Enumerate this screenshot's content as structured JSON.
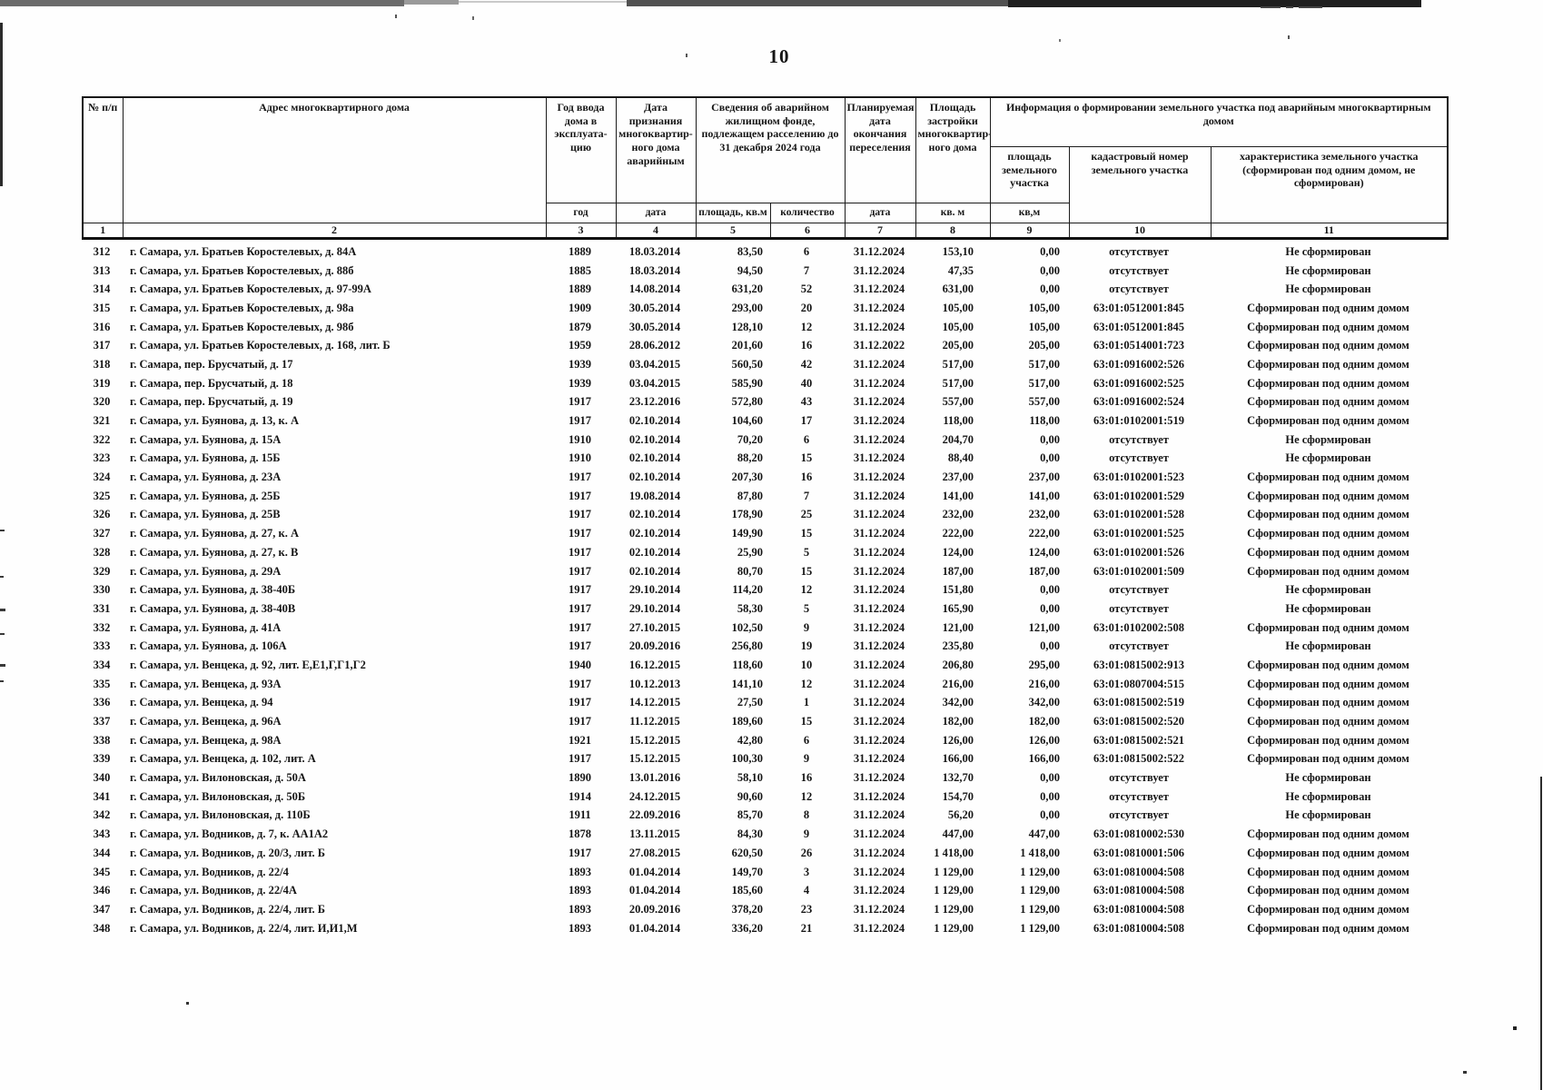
{
  "page_number": "10",
  "table": {
    "headers": {
      "num": "№ п/п",
      "address": "Адрес многоквартирного дома",
      "year": "Год ввода дома в эксплуата-цию",
      "recognition": "Дата признания многоквартир-ного дома аварийным",
      "emergency_info": "Сведения об аварийном жилищном фонде, подлежащем расселению до 31 декабря 2024 года",
      "planned_date": "Планируемая дата окончания переселения",
      "building_area": "Площадь застройки многоквартир-ного дома",
      "land_info_group": "Информация о формировании земельного участка под аварийным многоквартирным домом",
      "land_area": "площадь земельного участка",
      "cadastral": "кадастровый номер земельного участка",
      "characteristic": "характеристика земельного участка (сформирован под одним домом, не сформирован)"
    },
    "units": {
      "year": "год",
      "date": "дата",
      "area": "площадь, кв.м",
      "count": "количество",
      "date2": "дата",
      "sqm": "кв. м",
      "sqm2": "кв,м"
    },
    "col_numbers": [
      "1",
      "2",
      "3",
      "4",
      "5",
      "6",
      "7",
      "8",
      "9",
      "10",
      "11"
    ],
    "rows": [
      [
        "312",
        "г. Самара, ул. Братьев Коростелевых, д. 84А",
        "1889",
        "18.03.2014",
        "83,50",
        "6",
        "31.12.2024",
        "153,10",
        "0,00",
        "отсутствует",
        "Не сформирован"
      ],
      [
        "313",
        "г. Самара, ул. Братьев Коростелевых, д. 88б",
        "1885",
        "18.03.2014",
        "94,50",
        "7",
        "31.12.2024",
        "47,35",
        "0,00",
        "отсутствует",
        "Не сформирован"
      ],
      [
        "314",
        "г. Самара, ул. Братьев Коростелевых, д. 97-99А",
        "1889",
        "14.08.2014",
        "631,20",
        "52",
        "31.12.2024",
        "631,00",
        "0,00",
        "отсутствует",
        "Не сформирован"
      ],
      [
        "315",
        "г. Самара, ул. Братьев Коростелевых, д. 98а",
        "1909",
        "30.05.2014",
        "293,00",
        "20",
        "31.12.2024",
        "105,00",
        "105,00",
        "63:01:0512001:845",
        "Сформирован под одним домом"
      ],
      [
        "316",
        "г. Самара, ул. Братьев Коростелевых, д. 98б",
        "1879",
        "30.05.2014",
        "128,10",
        "12",
        "31.12.2024",
        "105,00",
        "105,00",
        "63:01:0512001:845",
        "Сформирован под одним домом"
      ],
      [
        "317",
        "г. Самара, ул. Братьев Коростелевых, д. 168, лит. Б",
        "1959",
        "28.06.2012",
        "201,60",
        "16",
        "31.12.2022",
        "205,00",
        "205,00",
        "63:01:0514001:723",
        "Сформирован под одним домом"
      ],
      [
        "318",
        "г. Самара, пер. Брусчатый, д. 17",
        "1939",
        "03.04.2015",
        "560,50",
        "42",
        "31.12.2024",
        "517,00",
        "517,00",
        "63:01:0916002:526",
        "Сформирован под одним домом"
      ],
      [
        "319",
        "г. Самара, пер. Брусчатый, д. 18",
        "1939",
        "03.04.2015",
        "585,90",
        "40",
        "31.12.2024",
        "517,00",
        "517,00",
        "63:01:0916002:525",
        "Сформирован под одним домом"
      ],
      [
        "320",
        "г. Самара, пер. Брусчатый, д. 19",
        "1917",
        "23.12.2016",
        "572,80",
        "43",
        "31.12.2024",
        "557,00",
        "557,00",
        "63:01:0916002:524",
        "Сформирован под одним домом"
      ],
      [
        "321",
        "г. Самара, ул. Буянова, д. 13, к. А",
        "1917",
        "02.10.2014",
        "104,60",
        "17",
        "31.12.2024",
        "118,00",
        "118,00",
        "63:01:0102001:519",
        "Сформирован под одним домом"
      ],
      [
        "322",
        "г. Самара, ул. Буянова, д. 15А",
        "1910",
        "02.10.2014",
        "70,20",
        "6",
        "31.12.2024",
        "204,70",
        "0,00",
        "отсутствует",
        "Не сформирован"
      ],
      [
        "323",
        "г. Самара, ул. Буянова, д. 15Б",
        "1910",
        "02.10.2014",
        "88,20",
        "15",
        "31.12.2024",
        "88,40",
        "0,00",
        "отсутствует",
        "Не сформирован"
      ],
      [
        "324",
        "г. Самара, ул. Буянова, д. 23А",
        "1917",
        "02.10.2014",
        "207,30",
        "16",
        "31.12.2024",
        "237,00",
        "237,00",
        "63:01:0102001:523",
        "Сформирован под одним домом"
      ],
      [
        "325",
        "г. Самара, ул. Буянова, д. 25Б",
        "1917",
        "19.08.2014",
        "87,80",
        "7",
        "31.12.2024",
        "141,00",
        "141,00",
        "63:01:0102001:529",
        "Сформирован под одним домом"
      ],
      [
        "326",
        "г. Самара, ул. Буянова, д. 25В",
        "1917",
        "02.10.2014",
        "178,90",
        "25",
        "31.12.2024",
        "232,00",
        "232,00",
        "63:01:0102001:528",
        "Сформирован под одним домом"
      ],
      [
        "327",
        "г. Самара, ул. Буянова, д. 27, к. А",
        "1917",
        "02.10.2014",
        "149,90",
        "15",
        "31.12.2024",
        "222,00",
        "222,00",
        "63:01:0102001:525",
        "Сформирован под одним домом"
      ],
      [
        "328",
        "г. Самара, ул. Буянова, д. 27, к. В",
        "1917",
        "02.10.2014",
        "25,90",
        "5",
        "31.12.2024",
        "124,00",
        "124,00",
        "63:01:0102001:526",
        "Сформирован под одним домом"
      ],
      [
        "329",
        "г. Самара, ул. Буянова, д. 29А",
        "1917",
        "02.10.2014",
        "80,70",
        "15",
        "31.12.2024",
        "187,00",
        "187,00",
        "63:01:0102001:509",
        "Сформирован под одним домом"
      ],
      [
        "330",
        "г. Самара, ул. Буянова, д. 38-40Б",
        "1917",
        "29.10.2014",
        "114,20",
        "12",
        "31.12.2024",
        "151,80",
        "0,00",
        "отсутствует",
        "Не сформирован"
      ],
      [
        "331",
        "г. Самара, ул. Буянова, д. 38-40В",
        "1917",
        "29.10.2014",
        "58,30",
        "5",
        "31.12.2024",
        "165,90",
        "0,00",
        "отсутствует",
        "Не сформирован"
      ],
      [
        "332",
        "г. Самара, ул. Буянова, д. 41А",
        "1917",
        "27.10.2015",
        "102,50",
        "9",
        "31.12.2024",
        "121,00",
        "121,00",
        "63:01:0102002:508",
        "Сформирован под одним домом"
      ],
      [
        "333",
        "г. Самара, ул. Буянова, д. 106А",
        "1917",
        "20.09.2016",
        "256,80",
        "19",
        "31.12.2024",
        "235,80",
        "0,00",
        "отсутствует",
        "Не сформирован"
      ],
      [
        "334",
        "г. Самара, ул. Венцека, д. 92, лит. Е,Е1,Г,Г1,Г2",
        "1940",
        "16.12.2015",
        "118,60",
        "10",
        "31.12.2024",
        "206,80",
        "295,00",
        "63:01:0815002:913",
        "Сформирован под одним домом"
      ],
      [
        "335",
        "г. Самара, ул. Венцека, д. 93А",
        "1917",
        "10.12.2013",
        "141,10",
        "12",
        "31.12.2024",
        "216,00",
        "216,00",
        "63:01:0807004:515",
        "Сформирован под одним домом"
      ],
      [
        "336",
        "г. Самара, ул. Венцека, д. 94",
        "1917",
        "14.12.2015",
        "27,50",
        "1",
        "31.12.2024",
        "342,00",
        "342,00",
        "63:01:0815002:519",
        "Сформирован под одним домом"
      ],
      [
        "337",
        "г. Самара, ул. Венцека, д. 96А",
        "1917",
        "11.12.2015",
        "189,60",
        "15",
        "31.12.2024",
        "182,00",
        "182,00",
        "63:01:0815002:520",
        "Сформирован под одним домом"
      ],
      [
        "338",
        "г. Самара, ул. Венцека, д. 98А",
        "1921",
        "15.12.2015",
        "42,80",
        "6",
        "31.12.2024",
        "126,00",
        "126,00",
        "63:01:0815002:521",
        "Сформирован под одним домом"
      ],
      [
        "339",
        "г. Самара, ул. Венцека, д. 102, лит. А",
        "1917",
        "15.12.2015",
        "100,30",
        "9",
        "31.12.2024",
        "166,00",
        "166,00",
        "63:01:0815002:522",
        "Сформирован под одним домом"
      ],
      [
        "340",
        "г. Самара, ул. Вилоновская, д. 50А",
        "1890",
        "13.01.2016",
        "58,10",
        "16",
        "31.12.2024",
        "132,70",
        "0,00",
        "отсутствует",
        "Не сформирован"
      ],
      [
        "341",
        "г. Самара, ул. Вилоновская, д. 50Б",
        "1914",
        "24.12.2015",
        "90,60",
        "12",
        "31.12.2024",
        "154,70",
        "0,00",
        "отсутствует",
        "Не сформирован"
      ],
      [
        "342",
        "г. Самара, ул. Вилоновская, д. 110Б",
        "1911",
        "22.09.2016",
        "85,70",
        "8",
        "31.12.2024",
        "56,20",
        "0,00",
        "отсутствует",
        "Не сформирован"
      ],
      [
        "343",
        "г. Самара, ул. Водников, д. 7, к. АА1А2",
        "1878",
        "13.11.2015",
        "84,30",
        "9",
        "31.12.2024",
        "447,00",
        "447,00",
        "63:01:0810002:530",
        "Сформирован под одним домом"
      ],
      [
        "344",
        "г. Самара, ул. Водников, д. 20/3, лит. Б",
        "1917",
        "27.08.2015",
        "620,50",
        "26",
        "31.12.2024",
        "1 418,00",
        "1 418,00",
        "63:01:0810001:506",
        "Сформирован под одним домом"
      ],
      [
        "345",
        "г. Самара, ул. Водников, д. 22/4",
        "1893",
        "01.04.2014",
        "149,70",
        "3",
        "31.12.2024",
        "1 129,00",
        "1 129,00",
        "63:01:0810004:508",
        "Сформирован под одним домом"
      ],
      [
        "346",
        "г. Самара, ул. Водников, д. 22/4А",
        "1893",
        "01.04.2014",
        "185,60",
        "4",
        "31.12.2024",
        "1 129,00",
        "1 129,00",
        "63:01:0810004:508",
        "Сформирован под одним домом"
      ],
      [
        "347",
        "г. Самара, ул. Водников, д. 22/4, лит. Б",
        "1893",
        "20.09.2016",
        "378,20",
        "23",
        "31.12.2024",
        "1 129,00",
        "1 129,00",
        "63:01:0810004:508",
        "Сформирован под одним домом"
      ],
      [
        "348",
        "г. Самара, ул. Водников, д. 22/4, лит. И,И1,М",
        "1893",
        "01.04.2014",
        "336,20",
        "21",
        "31.12.2024",
        "1 129,00",
        "1 129,00",
        "63:01:0810004:508",
        "Сформирован под одним домом"
      ]
    ]
  }
}
